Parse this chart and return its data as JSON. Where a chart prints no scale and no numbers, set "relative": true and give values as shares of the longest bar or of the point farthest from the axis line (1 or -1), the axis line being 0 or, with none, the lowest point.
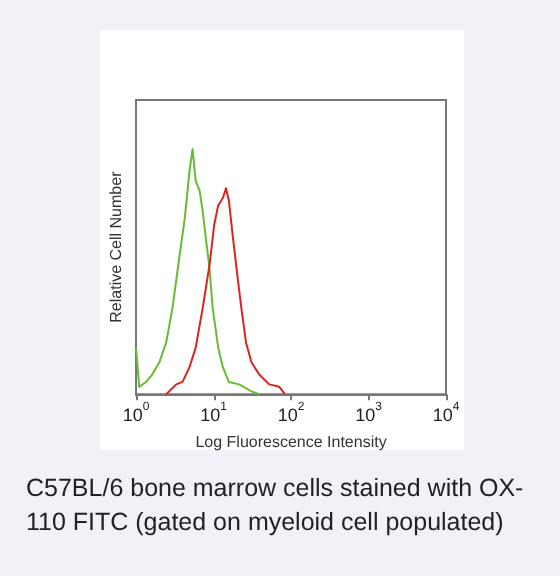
{
  "chart_data": {
    "type": "line",
    "xlabel": "Log Fluorescence Intensity",
    "ylabel": "Relative Cell Number",
    "log": "x",
    "relative": true,
    "xlim": [
      1,
      10000
    ],
    "xticks": [
      {
        "value": 1,
        "label": "10$^{0}$"
      },
      {
        "value": 10,
        "label": "10$^{1}$"
      },
      {
        "value": 100,
        "label": "10$^{2}$"
      },
      {
        "value": 1000,
        "label": "10$^{3}$"
      },
      {
        "value": 10000,
        "label": "10$^{4}$"
      }
    ],
    "grid": false,
    "marker": "none",
    "line_style": "solid",
    "series": [
      {
        "color": "#66bb33",
        "x": [
          1,
          1.1,
          1.35,
          1.62,
          2.0,
          2.45,
          2.95,
          3.63,
          4.27,
          4.9,
          5.37,
          5.89,
          6.61,
          7.24,
          7.94,
          8.91,
          9.77,
          11.5,
          13.2,
          15.8,
          21.4,
          31.6,
          38.9
        ],
        "values": [
          0.19,
          0.03,
          0.05,
          0.08,
          0.13,
          0.21,
          0.35,
          0.56,
          0.72,
          0.91,
          1.0,
          0.87,
          0.83,
          0.75,
          0.64,
          0.51,
          0.35,
          0.19,
          0.11,
          0.05,
          0.04,
          0.01,
          0
        ]
      },
      {
        "color": "#dd2222",
        "x": [
          2.45,
          3.31,
          3.98,
          4.9,
          5.89,
          7.24,
          8.91,
          10.2,
          11.5,
          13.2,
          14.5,
          15.8,
          17.8,
          20.4,
          22.9,
          26.3,
          30.9,
          38.9,
          52.5,
          70.8,
          83.2
        ],
        "values": [
          0,
          0.04,
          0.05,
          0.11,
          0.19,
          0.35,
          0.53,
          0.69,
          0.77,
          0.8,
          0.84,
          0.79,
          0.64,
          0.48,
          0.35,
          0.21,
          0.13,
          0.08,
          0.04,
          0.03,
          0
        ]
      }
    ],
    "annotations": [
      "C57BL/6 bone marrow cells stained with OX-110 FITC (gated on myeloid cell populated)"
    ]
  }
}
